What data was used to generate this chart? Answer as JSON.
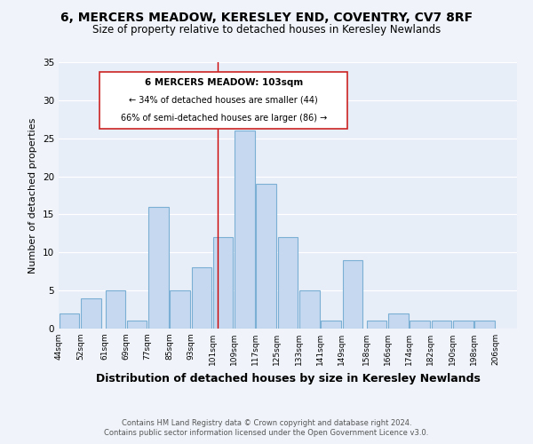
{
  "title": "6, MERCERS MEADOW, KERESLEY END, COVENTRY, CV7 8RF",
  "subtitle": "Size of property relative to detached houses in Keresley Newlands",
  "xlabel": "Distribution of detached houses by size in Keresley Newlands",
  "ylabel": "Number of detached properties",
  "bar_left_edges": [
    44,
    52,
    61,
    69,
    77,
    85,
    93,
    101,
    109,
    117,
    125,
    133,
    141,
    149,
    158,
    166,
    174,
    182,
    190,
    198
  ],
  "bar_widths": [
    8,
    8,
    8,
    8,
    8,
    8,
    8,
    8,
    8,
    8,
    8,
    8,
    8,
    8,
    8,
    8,
    8,
    8,
    8,
    8
  ],
  "bar_heights": [
    2,
    4,
    5,
    1,
    16,
    5,
    8,
    12,
    26,
    19,
    12,
    5,
    1,
    9,
    1,
    2,
    1,
    1,
    1,
    1
  ],
  "bar_color": "#c5d8f0",
  "bar_edgecolor": "#7bafd4",
  "vline_x": 103,
  "vline_color": "#cc0000",
  "xlim": [
    44,
    214
  ],
  "ylim": [
    0,
    35
  ],
  "yticks": [
    0,
    5,
    10,
    15,
    20,
    25,
    30,
    35
  ],
  "xtick_labels": [
    "44sqm",
    "52sqm",
    "61sqm",
    "69sqm",
    "77sqm",
    "85sqm",
    "93sqm",
    "101sqm",
    "109sqm",
    "117sqm",
    "125sqm",
    "133sqm",
    "141sqm",
    "149sqm",
    "158sqm",
    "166sqm",
    "174sqm",
    "182sqm",
    "190sqm",
    "198sqm",
    "206sqm"
  ],
  "xtick_positions": [
    44,
    52,
    61,
    69,
    77,
    85,
    93,
    101,
    109,
    117,
    125,
    133,
    141,
    149,
    158,
    166,
    174,
    182,
    190,
    198,
    206
  ],
  "annotation_title": "6 MERCERS MEADOW: 103sqm",
  "annotation_line1": "← 34% of detached houses are smaller (44)",
  "annotation_line2": "66% of semi-detached houses are larger (86) →",
  "footnote1": "Contains HM Land Registry data © Crown copyright and database right 2024.",
  "footnote2": "Contains public sector information licensed under the Open Government Licence v3.0.",
  "bg_color": "#f0f4fa",
  "plot_bg_color": "#e8eef8",
  "grid_color": "#ffffff",
  "title_fontsize": 10,
  "subtitle_fontsize": 8.5,
  "ylabel_fontsize": 8,
  "xlabel_fontsize": 9
}
